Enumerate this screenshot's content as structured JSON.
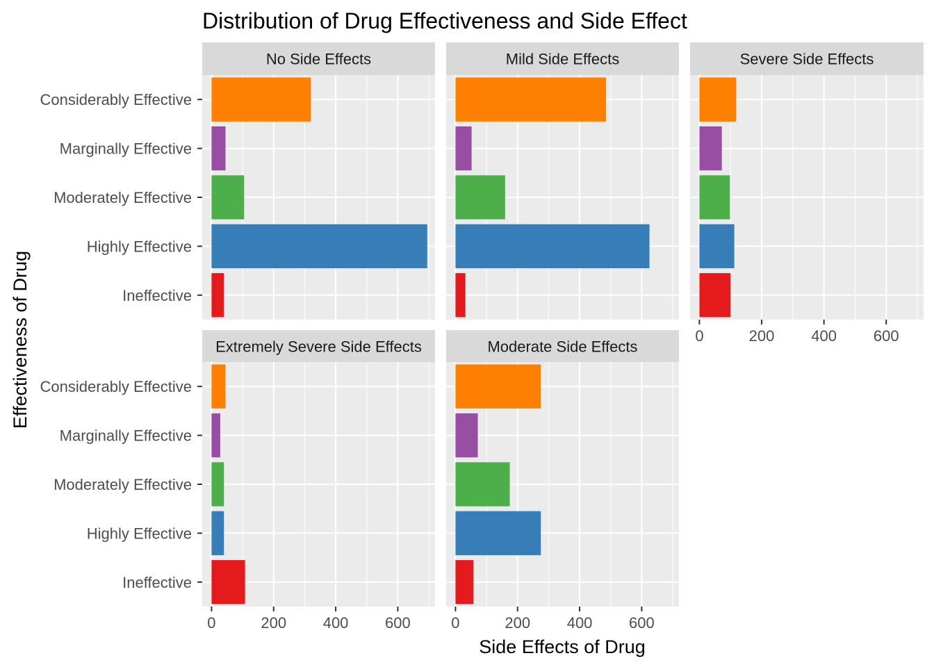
{
  "chart_data": {
    "type": "bar",
    "orientation": "horizontal",
    "title": "Distribution of Drug Effectiveness and Side Effect",
    "xlabel": "Side Effects of Drug",
    "ylabel": "Effectiveness of Drug",
    "xlim": [
      -30,
      720
    ],
    "x_ticks": [
      0,
      200,
      400,
      600
    ],
    "grid": true,
    "categories": [
      "Considerably Effective",
      "Marginally Effective",
      "Moderately Effective",
      "Highly Effective",
      "Ineffective"
    ],
    "colors": {
      "Considerably Effective": "#FF7F00",
      "Marginally Effective": "#984EA3",
      "Moderately Effective": "#4DAF4A",
      "Highly Effective": "#377EB8",
      "Ineffective": "#E41A1C"
    },
    "panels": [
      {
        "name": "No Side Effects",
        "values": [
          320,
          45,
          105,
          695,
          40
        ]
      },
      {
        "name": "Mild Side Effects",
        "values": [
          485,
          52,
          160,
          625,
          32
        ]
      },
      {
        "name": "Severe Side Effects",
        "values": [
          118,
          72,
          98,
          112,
          100
        ]
      },
      {
        "name": "Extremely Severe Side Effects",
        "values": [
          45,
          28,
          40,
          40,
          108
        ]
      },
      {
        "name": "Moderate Side Effects",
        "values": [
          275,
          72,
          175,
          275,
          58
        ]
      }
    ]
  }
}
